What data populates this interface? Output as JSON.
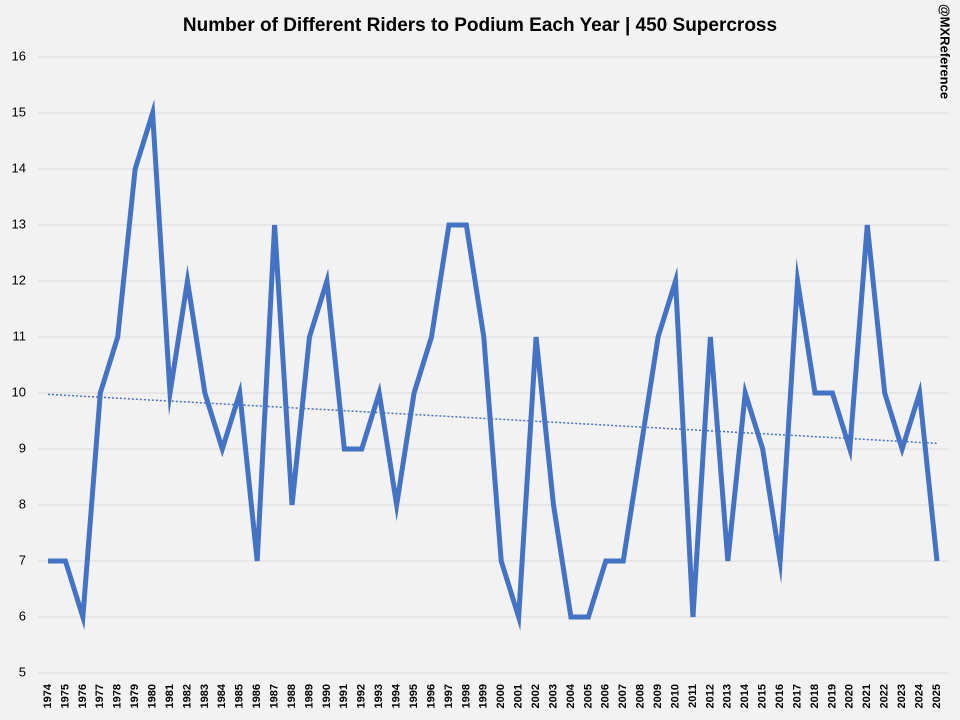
{
  "chart_data": {
    "type": "line",
    "title": "Number of Different Riders to Podium Each Year | 450 Supercross",
    "watermark": "@MXReference",
    "categories": [
      "1974",
      "1975",
      "1976",
      "1977",
      "1978",
      "1979",
      "1980",
      "1981",
      "1982",
      "1983",
      "1984",
      "1985",
      "1986",
      "1987",
      "1988",
      "1989",
      "1990",
      "1991",
      "1992",
      "1993",
      "1994",
      "1995",
      "1996",
      "1997",
      "1998",
      "1999",
      "2000",
      "2001",
      "2002",
      "2003",
      "2004",
      "2005",
      "2006",
      "2007",
      "2008",
      "2009",
      "2010",
      "2011",
      "2012",
      "2013",
      "2014",
      "2015",
      "2016",
      "2017",
      "2018",
      "2019",
      "2020",
      "2021",
      "2022",
      "2023",
      "2024",
      "2025"
    ],
    "values": [
      7,
      7,
      6,
      10,
      11,
      14,
      15,
      10,
      12,
      10,
      9,
      10,
      7,
      13,
      8,
      11,
      12,
      9,
      9,
      10,
      8,
      10,
      11,
      13,
      13,
      11,
      7,
      6,
      11,
      8,
      6,
      6,
      7,
      7,
      9,
      11,
      12,
      6,
      11,
      7,
      10,
      9,
      7,
      12,
      10,
      10,
      9,
      13,
      10,
      9,
      10,
      7
    ],
    "color": "#4472c4",
    "trendline": true,
    "ylim": [
      5,
      16
    ],
    "yticks": [
      5,
      6,
      7,
      8,
      9,
      10,
      11,
      12,
      13,
      14,
      15,
      16
    ],
    "grid": true
  }
}
